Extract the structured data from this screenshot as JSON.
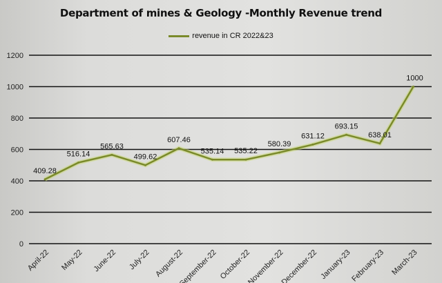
{
  "chart_data": {
    "type": "line",
    "title": "Department of mines & Geology -Monthly Revenue trend",
    "xlabel": "",
    "ylabel": "",
    "categories": [
      "April-22",
      "May-22",
      "June-22",
      "July-22",
      "August-22",
      "September-22",
      "October-22",
      "November-22",
      "December-22",
      "January-23",
      "February-23",
      "March-23"
    ],
    "series": [
      {
        "name": "revenue in CR 2022&23",
        "values": [
          409.28,
          516.14,
          565.63,
          499.62,
          607.46,
          535.14,
          535.22,
          580.39,
          631.12,
          693.15,
          638.01,
          1000
        ],
        "color": "#7a8a2a"
      }
    ],
    "data_labels": [
      "409.28",
      "516.14",
      "565.63",
      "499.62",
      "607.46",
      "535.14",
      "535.22",
      "580.39",
      "631.12",
      "693.15",
      "638.01",
      "1000"
    ],
    "ylim": [
      0,
      1200
    ],
    "yticks": [
      0,
      200,
      400,
      600,
      800,
      1000,
      1200
    ],
    "grid": true,
    "legend_position": "top"
  }
}
